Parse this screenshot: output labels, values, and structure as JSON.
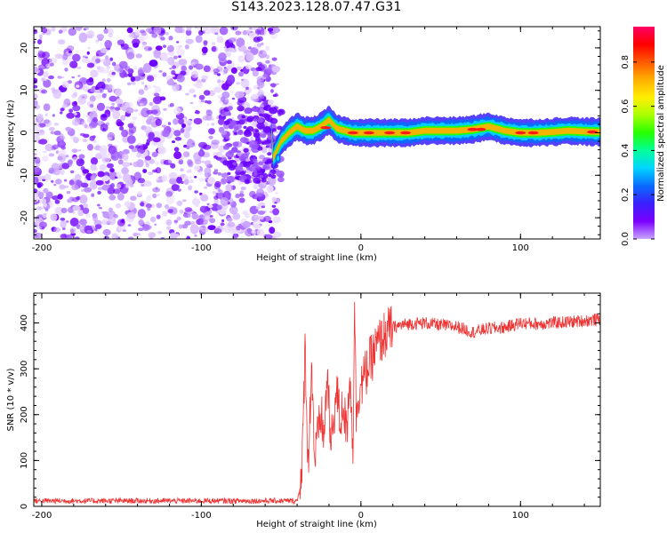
{
  "title": "S143.2023.128.07.47.G31",
  "colorbar": {
    "label": "Normalized spectral amplitude",
    "ticks": [
      0.0,
      0.2,
      0.4,
      0.6,
      0.8
    ],
    "colormap": [
      "#ffffff",
      "#c9a6ff",
      "#7a00ff",
      "#3a1fff",
      "#0a6bff",
      "#00d4ff",
      "#00ff9a",
      "#25ff00",
      "#a8ff00",
      "#ffee00",
      "#ffb000",
      "#ff5a00",
      "#ff0000",
      "#ff0066"
    ]
  },
  "chart_data": [
    {
      "type": "heatmap",
      "xlabel": "Height of straight line (km)",
      "ylabel": "Frequency (Hz)",
      "xlim": [
        -205,
        150
      ],
      "ylim": [
        -25,
        25
      ],
      "xticks": [
        -200,
        -100,
        0,
        100
      ],
      "yticks": [
        -20,
        -10,
        0,
        10,
        20
      ],
      "noise_region_x": [
        -205,
        -52
      ],
      "signal_ridge": {
        "x": [
          -55,
          -50,
          -45,
          -40,
          -35,
          -30,
          -25,
          -20,
          -15,
          -10,
          -5,
          0,
          10,
          20,
          30,
          40,
          50,
          60,
          70,
          80,
          90,
          100,
          110,
          120,
          130,
          140,
          150
        ],
        "frequency": [
          -6,
          -2,
          0,
          1.5,
          0.5,
          0.5,
          1.5,
          3,
          1,
          0.5,
          0,
          0,
          0,
          0,
          0,
          0.5,
          0.5,
          0.5,
          0.8,
          1.5,
          0.5,
          0,
          0,
          0.2,
          0.5,
          0.3,
          0.2
        ]
      }
    },
    {
      "type": "line",
      "xlabel": "Height of straight line (km)",
      "ylabel": "SNR (10 * v/v)",
      "xlim": [
        -205,
        150
      ],
      "ylim": [
        0,
        465
      ],
      "xticks": [
        -200,
        -100,
        0,
        100
      ],
      "yticks": [
        0,
        100,
        200,
        300,
        400
      ],
      "color": "#ee3333",
      "series": [
        {
          "x": [
            -205,
            -180,
            -150,
            -120,
            -90,
            -60,
            -40,
            -37,
            -35,
            -33,
            -31,
            -29,
            -27,
            -25,
            -23,
            -21,
            -19,
            -17,
            -15,
            -13,
            -11,
            -9,
            -7,
            -5,
            -4,
            -3,
            -1,
            1,
            5,
            10,
            15,
            20,
            25,
            30,
            40,
            50,
            60,
            70,
            80,
            90,
            100,
            110,
            120,
            130,
            140,
            150
          ],
          "y": [
            12,
            12,
            12,
            12,
            12,
            12,
            12,
            60,
            350,
            80,
            320,
            100,
            150,
            200,
            150,
            300,
            120,
            200,
            250,
            180,
            230,
            150,
            300,
            120,
            465,
            200,
            260,
            270,
            310,
            350,
            375,
            390,
            395,
            398,
            400,
            395,
            392,
            380,
            388,
            390,
            400,
            398,
            400,
            402,
            405,
            408
          ]
        }
      ]
    }
  ]
}
